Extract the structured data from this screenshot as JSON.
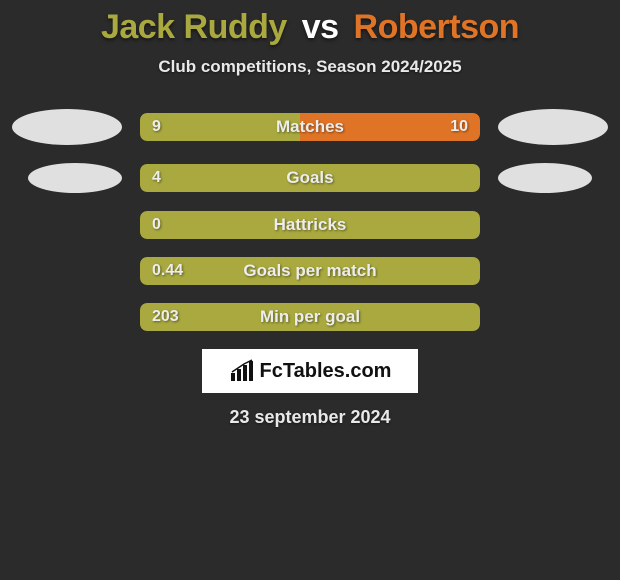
{
  "title": {
    "player1": "Jack Ruddy",
    "vs": "vs",
    "player2": "Robertson"
  },
  "subtitle": "Club competitions, Season 2024/2025",
  "colors": {
    "player1": "#a9a93f",
    "player2": "#e07426",
    "background": "#2b2b2b",
    "oval": "#e0e0e0",
    "text": "#ededed"
  },
  "stats": [
    {
      "label": "Matches",
      "left_value": "9",
      "right_value": "10",
      "left_pct": 47,
      "right_pct": 53,
      "show_ovals": "large"
    },
    {
      "label": "Goals",
      "left_value": "4",
      "right_value": "",
      "left_pct": 100,
      "right_pct": 0,
      "show_ovals": "small"
    },
    {
      "label": "Hattricks",
      "left_value": "0",
      "right_value": "",
      "left_pct": 100,
      "right_pct": 0,
      "show_ovals": "none"
    },
    {
      "label": "Goals per match",
      "left_value": "0.44",
      "right_value": "",
      "left_pct": 100,
      "right_pct": 0,
      "show_ovals": "none"
    },
    {
      "label": "Min per goal",
      "left_value": "203",
      "right_value": "",
      "left_pct": 100,
      "right_pct": 0,
      "show_ovals": "none"
    }
  ],
  "logo": {
    "text": "FcTables.com",
    "icon_color": "#111111",
    "box_bg": "#ffffff"
  },
  "date": "23 september 2024"
}
